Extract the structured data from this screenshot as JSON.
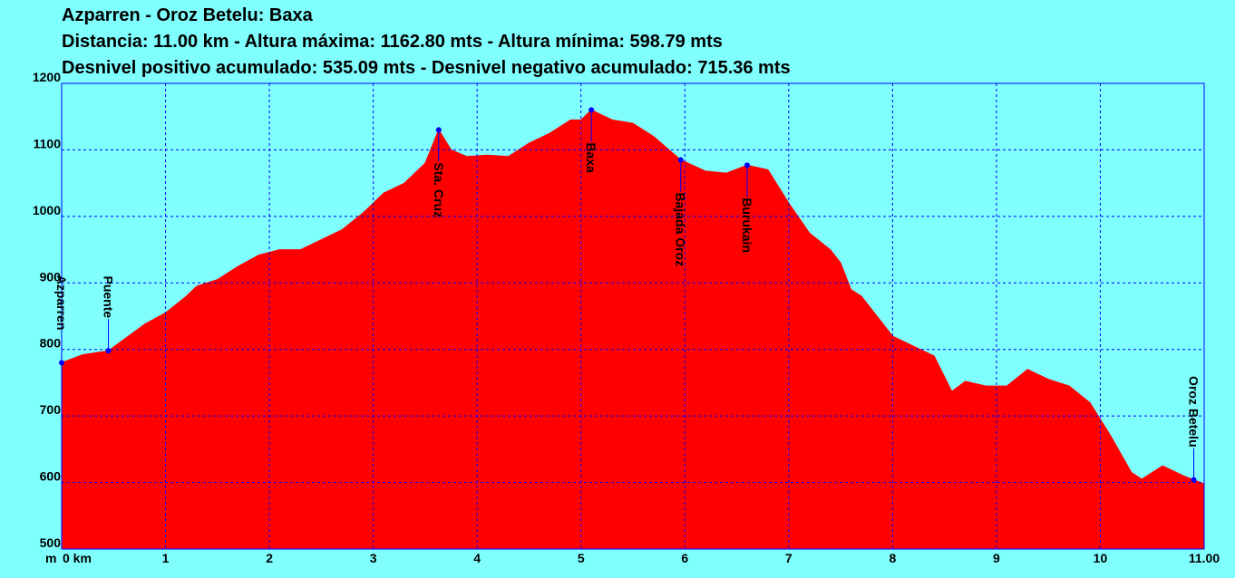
{
  "chart_data": {
    "type": "area",
    "title": "Azparren - Oroz Betelu: Baxa",
    "subtitles": [
      "Distancia: 11.00 km - Altura máxima: 1162.80 mts - Altura mínima: 598.79 mts",
      "Desnivel positivo acumulado: 535.09 mts - Desnivel negativo acumulado: 715.36 mts"
    ],
    "y_label": "m",
    "color": "#ff0000",
    "grid": true,
    "x": [
      0,
      0.2,
      0.45,
      0.6,
      0.8,
      1.0,
      1.2,
      1.3,
      1.5,
      1.7,
      1.9,
      2.1,
      2.3,
      2.5,
      2.7,
      2.9,
      3.1,
      3.3,
      3.5,
      3.63,
      3.75,
      3.9,
      4.1,
      4.3,
      4.5,
      4.7,
      4.9,
      5.0,
      5.1,
      5.3,
      5.5,
      5.7,
      5.96,
      6.2,
      6.4,
      6.6,
      6.8,
      7.0,
      7.2,
      7.4,
      7.5,
      7.6,
      7.7,
      8.0,
      8.2,
      8.4,
      8.57,
      8.7,
      8.9,
      9.1,
      9.3,
      9.5,
      9.7,
      9.9,
      10.1,
      10.3,
      10.4,
      10.6,
      10.8,
      10.9,
      11.0
    ],
    "values": [
      780,
      792,
      798,
      815,
      838,
      855,
      880,
      895,
      905,
      925,
      942,
      950,
      950,
      965,
      980,
      1005,
      1035,
      1050,
      1080,
      1130,
      1100,
      1090,
      1092,
      1090,
      1110,
      1125,
      1145,
      1145,
      1160,
      1145,
      1140,
      1120,
      1085,
      1068,
      1065,
      1077,
      1070,
      1020,
      975,
      950,
      930,
      890,
      880,
      820,
      805,
      790,
      737,
      752,
      745,
      745,
      770,
      755,
      745,
      720,
      670,
      615,
      605,
      625,
      610,
      604,
      598
    ],
    "xlim": [
      0,
      11
    ],
    "ylim": [
      500,
      1200
    ],
    "xticks": [
      {
        "value": 0,
        "label": "0 km"
      },
      1,
      2,
      3,
      4,
      5,
      6,
      7,
      8,
      9,
      10,
      {
        "value": 11,
        "label": "11.00"
      }
    ],
    "yticks": [
      500,
      600,
      700,
      800,
      900,
      1000,
      1100,
      1200
    ],
    "annotations": [
      {
        "label": "Azparren",
        "x": 0,
        "y": 780
      },
      {
        "label": "Puente",
        "x": 0.45,
        "y": 798
      },
      {
        "label": "Sta. Cruz",
        "x": 3.63,
        "y": 1130
      },
      {
        "label": "Baxa",
        "x": 5.1,
        "y": 1160
      },
      {
        "label": "Bajada Oroz",
        "x": 5.96,
        "y": 1085
      },
      {
        "label": "Burukain",
        "x": 6.6,
        "y": 1077
      },
      {
        "label": "Oroz Betelu",
        "x": 10.9,
        "y": 604
      }
    ]
  }
}
